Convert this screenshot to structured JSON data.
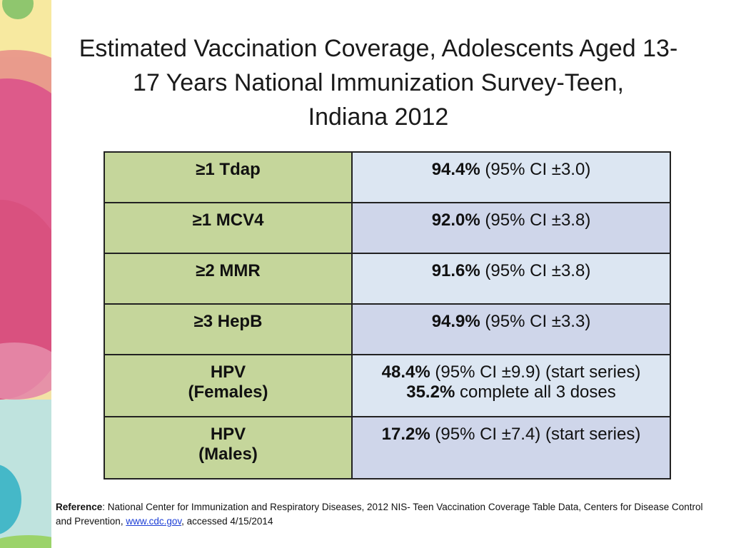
{
  "title": {
    "line1": "Estimated Vaccination Coverage, Adolescents Aged 13-",
    "line2": "17 Years National Immunization Survey-Teen,",
    "line3": "Indiana 2012"
  },
  "rows": [
    {
      "label1": "≥1 Tdap",
      "label2": "",
      "value": "94.4%",
      "ci": " (95% CI ±3.0)",
      "value2": "",
      "note2": ""
    },
    {
      "label1": "≥1 MCV4",
      "label2": "",
      "value": "92.0%",
      "ci": " (95% CI ±3.8)",
      "value2": "",
      "note2": ""
    },
    {
      "label1": "≥2 MMR",
      "label2": "",
      "value": "91.6%",
      "ci": " (95% CI ±3.8)",
      "value2": "",
      "note2": ""
    },
    {
      "label1": "≥3 HepB",
      "label2": "",
      "value": "94.9%",
      "ci": " (95% CI ±3.3)",
      "value2": "",
      "note2": ""
    },
    {
      "label1": "HPV",
      "label2": "(Females)",
      "value": "48.4%",
      "ci": " (95% CI ±9.9) (start series)",
      "value2": "35.2%",
      "note2": " complete all 3 doses"
    },
    {
      "label1": "HPV",
      "label2": "(Males)",
      "value": "17.2%",
      "ci": " (95% CI ±7.4) (start series)",
      "value2": "",
      "note2": ""
    }
  ],
  "reference": {
    "label": "Reference",
    "text_before": ":  National Center for Immunization and Respiratory Diseases, 2012 NIS- Teen Vaccination Coverage Table Data, Centers for Disease Control and Prevention, ",
    "link": "www.cdc.gov",
    "text_after": ", accessed 4/15/2014"
  },
  "colors": {
    "label_cell": "#c5d69b",
    "value_cell_light": "#dce6f2",
    "value_cell_dark": "#cfd6ea",
    "link": "#1d3fd6"
  }
}
